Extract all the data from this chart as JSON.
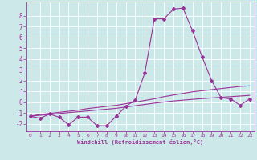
{
  "x": [
    0,
    1,
    2,
    3,
    4,
    5,
    6,
    7,
    8,
    9,
    10,
    11,
    12,
    13,
    14,
    15,
    16,
    17,
    18,
    19,
    20,
    21,
    22,
    23
  ],
  "main_line": [
    -1.3,
    -1.5,
    -1.1,
    -1.4,
    -2.1,
    -1.4,
    -1.4,
    -2.2,
    -2.2,
    -1.3,
    -0.4,
    0.2,
    2.7,
    7.7,
    7.7,
    8.6,
    8.7,
    6.6,
    4.2,
    2.0,
    0.4,
    0.3,
    -0.3,
    0.3
  ],
  "trend_upper": [
    -1.3,
    -1.15,
    -1.05,
    -0.95,
    -0.85,
    -0.75,
    -0.6,
    -0.5,
    -0.4,
    -0.3,
    -0.15,
    0.0,
    0.15,
    0.3,
    0.5,
    0.65,
    0.8,
    0.95,
    1.05,
    1.15,
    1.25,
    1.35,
    1.45,
    1.5
  ],
  "trend_lower": [
    -1.3,
    -1.22,
    -1.14,
    -1.06,
    -0.98,
    -0.9,
    -0.82,
    -0.74,
    -0.66,
    -0.58,
    -0.46,
    -0.34,
    -0.22,
    -0.1,
    0.0,
    0.1,
    0.18,
    0.25,
    0.32,
    0.38,
    0.44,
    0.5,
    0.56,
    0.62
  ],
  "ylim": [
    -2.7,
    9.3
  ],
  "xlim": [
    -0.5,
    23.5
  ],
  "yticks": [
    -2,
    -1,
    0,
    1,
    2,
    3,
    4,
    5,
    6,
    7,
    8
  ],
  "xticks": [
    0,
    1,
    2,
    3,
    4,
    5,
    6,
    7,
    8,
    9,
    10,
    11,
    12,
    13,
    14,
    15,
    16,
    17,
    18,
    19,
    20,
    21,
    22,
    23
  ],
  "xlabel": "Windchill (Refroidissement éolien,°C)",
  "line_color": "#993399",
  "bg_color": "#cce8e8",
  "grid_color": "#ffffff",
  "marker": "D",
  "marker_size": 2.0,
  "line_width": 0.8
}
